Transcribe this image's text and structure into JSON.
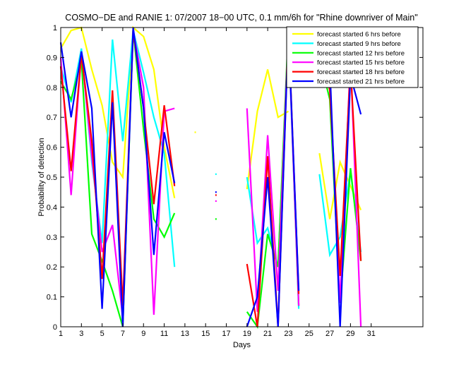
{
  "chart_data": {
    "type": "line",
    "title": "COSMO−DE and RANIE 1: 07/2007 18−00 UTC, 0.1 mm/6h for \"Rhine downriver of Main\"",
    "xlabel": "Days",
    "ylabel": "Probability of detection",
    "xlim": [
      1,
      36
    ],
    "ylim": [
      0,
      1
    ],
    "xticks": [
      "1",
      "3",
      "5",
      "7",
      "9",
      "11",
      "13",
      "15",
      "17",
      "19",
      "21",
      "23",
      "25",
      "27",
      "29",
      "31"
    ],
    "xtick_values": [
      1,
      3,
      5,
      7,
      9,
      11,
      13,
      15,
      17,
      19,
      21,
      23,
      25,
      27,
      29,
      31
    ],
    "yticks": [
      "0",
      "0.1",
      "0.2",
      "0.3",
      "0.4",
      "0.5",
      "0.6",
      "0.7",
      "0.8",
      "0.9",
      "1"
    ],
    "ytick_values": [
      0,
      0.1,
      0.2,
      0.3,
      0.4,
      0.5,
      0.6,
      0.7,
      0.8,
      0.9,
      1
    ],
    "legend_position": "top-right",
    "grid": false,
    "series": [
      {
        "name": "forecast started 6 hrs before",
        "color": "#ffff00",
        "segments": [
          [
            [
              1,
              0.93
            ],
            [
              2,
              0.99
            ],
            [
              3,
              1.0
            ],
            [
              4,
              0.86
            ],
            [
              5,
              0.74
            ],
            [
              6,
              0.55
            ],
            [
              7,
              0.5
            ],
            [
              8,
              1.0
            ],
            [
              9,
              0.97
            ],
            [
              10,
              0.86
            ],
            [
              11,
              0.6
            ],
            [
              12,
              0.43
            ]
          ],
          [
            [
              14,
              0.65
            ]
          ],
          [
            [
              19,
              0.46
            ],
            [
              20,
              0.72
            ],
            [
              21,
              0.86
            ],
            [
              22,
              0.7
            ],
            [
              23,
              0.72
            ]
          ],
          [
            [
              26,
              0.58
            ],
            [
              27,
              0.36
            ],
            [
              28,
              0.55
            ],
            [
              29,
              0.47
            ],
            [
              30,
              0.39
            ]
          ]
        ]
      },
      {
        "name": "forecast started 9 hrs before",
        "color": "#00ffff",
        "segments": [
          [
            [
              1,
              0.87
            ],
            [
              2,
              0.75
            ],
            [
              3,
              0.93
            ],
            [
              4,
              0.55
            ],
            [
              5,
              0.28
            ],
            [
              6,
              0.96
            ],
            [
              7,
              0.62
            ],
            [
              8,
              0.99
            ],
            [
              9,
              0.85
            ],
            [
              10,
              0.7
            ],
            [
              11,
              0.58
            ],
            [
              12,
              0.2
            ]
          ],
          [
            [
              16,
              0.51
            ]
          ],
          [
            [
              19,
              0.5
            ],
            [
              20,
              0.28
            ],
            [
              21,
              0.33
            ],
            [
              22,
              0.2
            ],
            [
              23,
              0.98
            ],
            [
              24,
              0.06
            ]
          ],
          [
            [
              26,
              0.51
            ],
            [
              27,
              0.24
            ],
            [
              28,
              0.3
            ],
            [
              29,
              0.52
            ],
            [
              30,
              0.25
            ]
          ]
        ]
      },
      {
        "name": "forecast started 12 hrs before",
        "color": "#00ff00",
        "segments": [
          [
            [
              1,
              0.82
            ],
            [
              2,
              0.76
            ],
            [
              3,
              0.89
            ],
            [
              4,
              0.31
            ],
            [
              5,
              0.22
            ],
            [
              6,
              0.12
            ],
            [
              7,
              0.0
            ],
            [
              8,
              0.99
            ],
            [
              9,
              0.66
            ],
            [
              10,
              0.36
            ],
            [
              11,
              0.3
            ],
            [
              12,
              0.38
            ]
          ],
          [
            [
              16,
              0.36
            ]
          ],
          [
            [
              19,
              0.05
            ],
            [
              20,
              0.0
            ],
            [
              21,
              0.31
            ],
            [
              22,
              0.2
            ],
            [
              23,
              1.0
            ],
            [
              24,
              0.07
            ]
          ],
          [
            [
              26,
              0.9
            ],
            [
              27,
              0.76
            ],
            [
              28,
              0.08
            ],
            [
              29,
              0.53
            ],
            [
              30,
              0.22
            ]
          ]
        ]
      },
      {
        "name": "forecast started 15 hrs before",
        "color": "#ff00ff",
        "segments": [
          [
            [
              1,
              0.9
            ],
            [
              2,
              0.44
            ],
            [
              3,
              0.92
            ],
            [
              4,
              0.57
            ],
            [
              5,
              0.25
            ],
            [
              6,
              0.34
            ],
            [
              7,
              0.03
            ],
            [
              8,
              0.99
            ],
            [
              9,
              0.8
            ],
            [
              10,
              0.04
            ],
            [
              11,
              0.72
            ],
            [
              12,
              0.73
            ]
          ],
          [
            [
              16,
              0.42
            ]
          ],
          [
            [
              19,
              0.73
            ],
            [
              20,
              0.05
            ],
            [
              21,
              0.64
            ],
            [
              22,
              0.12
            ],
            [
              23,
              0.99
            ],
            [
              24,
              0.07
            ]
          ],
          [
            [
              26,
              0.95
            ],
            [
              27,
              0.82
            ],
            [
              28,
              0.08
            ],
            [
              29,
              0.9
            ],
            [
              30,
              0.0
            ]
          ]
        ]
      },
      {
        "name": "forecast started 18 hrs before",
        "color": "#ff0000",
        "segments": [
          [
            [
              1,
              0.87
            ],
            [
              2,
              0.52
            ],
            [
              3,
              0.91
            ],
            [
              4,
              0.62
            ],
            [
              5,
              0.16
            ],
            [
              6,
              0.79
            ],
            [
              7,
              0.07
            ],
            [
              8,
              0.99
            ],
            [
              9,
              0.73
            ],
            [
              10,
              0.41
            ],
            [
              11,
              0.74
            ],
            [
              12,
              0.47
            ]
          ],
          [
            [
              16,
              0.44
            ]
          ],
          [
            [
              19,
              0.21
            ],
            [
              20,
              0.0
            ],
            [
              21,
              0.57
            ],
            [
              22,
              0.0
            ],
            [
              23,
              1.0
            ],
            [
              24,
              0.11
            ]
          ],
          [
            [
              26,
              0.96
            ],
            [
              27,
              0.79
            ],
            [
              28,
              0.17
            ],
            [
              29,
              0.87
            ],
            [
              30,
              0.22
            ]
          ]
        ]
      },
      {
        "name": "forecast started 21 hrs before",
        "color": "#0000ff",
        "segments": [
          [
            [
              1,
              0.95
            ],
            [
              2,
              0.7
            ],
            [
              3,
              0.92
            ],
            [
              4,
              0.73
            ],
            [
              5,
              0.06
            ],
            [
              6,
              0.75
            ],
            [
              7,
              0.0
            ],
            [
              8,
              1.0
            ],
            [
              9,
              0.73
            ],
            [
              10,
              0.24
            ],
            [
              11,
              0.65
            ],
            [
              12,
              0.48
            ]
          ],
          [
            [
              16,
              0.45
            ]
          ],
          [
            [
              19,
              0.0
            ],
            [
              20,
              0.1
            ],
            [
              21,
              0.5
            ],
            [
              22,
              0.0
            ],
            [
              23,
              0.99
            ],
            [
              24,
              0.12
            ]
          ],
          [
            [
              26,
              0.98
            ],
            [
              27,
              0.87
            ],
            [
              28,
              0.0
            ],
            [
              29,
              0.84
            ],
            [
              30,
              0.71
            ]
          ]
        ]
      }
    ]
  }
}
